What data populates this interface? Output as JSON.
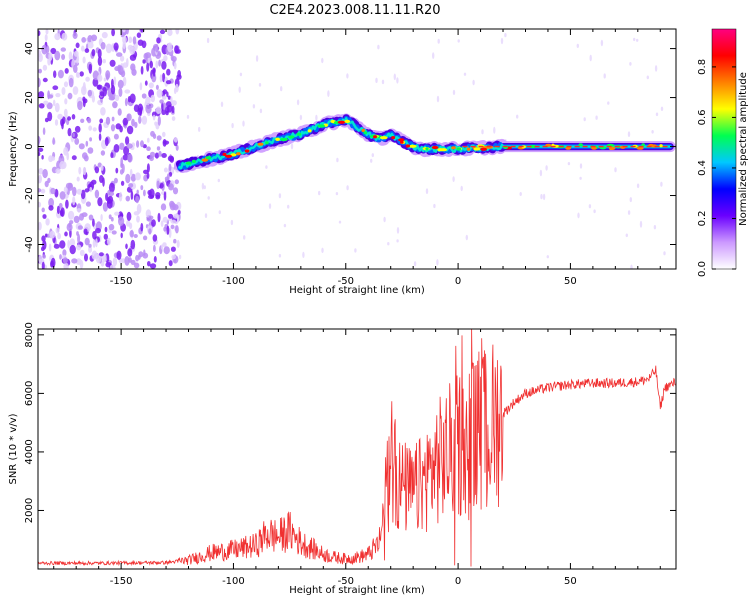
{
  "title": "C2E4.2023.008.11.11.R20",
  "chart_data": [
    {
      "type": "heatmap",
      "xlabel": "Height of straight line (km)",
      "ylabel": "Frequency (Hz)",
      "xlim": [
        -187,
        97
      ],
      "ylim": [
        -50,
        48
      ],
      "xticks": [
        -150,
        -100,
        -50,
        0,
        50
      ],
      "xtick_labels": [
        "-150",
        "-100",
        "-50",
        "0",
        "50"
      ],
      "yticks": [
        -40,
        -20,
        0,
        20,
        40
      ],
      "ytick_labels": [
        "-40",
        "-20",
        "0",
        "20",
        "40"
      ],
      "colorbar": {
        "label": "Normalized spectral amplitude",
        "range": [
          0,
          0.95
        ],
        "ticks": [
          0,
          0.2,
          0.4,
          0.6,
          0.8
        ],
        "tick_labels": [
          "0.0",
          "0.2",
          "0.4",
          "0.6",
          "0.8"
        ],
        "colormap": [
          "#ffffff",
          "#cc99ff",
          "#6a00ff",
          "#0000ff",
          "#00c8ff",
          "#00ff50",
          "#ffff00",
          "#ff8000",
          "#ff0000",
          "#ff0080"
        ]
      },
      "ridge": {
        "x": [
          -124,
          -115,
          -100,
          -90,
          -80,
          -70,
          -60,
          -55,
          -50,
          -45,
          -40,
          -35,
          -30,
          -25,
          -20,
          -15,
          0,
          20,
          50,
          95
        ],
        "freq_hz": [
          -8,
          -6,
          -3,
          0,
          3,
          5,
          9,
          10,
          11,
          8,
          5,
          3,
          5,
          2,
          0,
          -1,
          -1,
          0,
          0,
          0
        ]
      },
      "noise_region_x": [
        -187,
        -124
      ]
    },
    {
      "type": "line",
      "xlabel": "Height of straight line (km)",
      "ylabel": "SNR (10 * v/v)",
      "xlim": [
        -187,
        97
      ],
      "ylim": [
        0,
        8200
      ],
      "xticks": [
        -150,
        -100,
        -50,
        0,
        50
      ],
      "xtick_labels": [
        "-150",
        "-100",
        "-50",
        "0",
        "50"
      ],
      "yticks": [
        2000,
        4000,
        6000,
        8000
      ],
      "ytick_labels": [
        "2000",
        "4000",
        "6000",
        "8000"
      ],
      "color": "#f03030",
      "series": [
        {
          "name": "SNR",
          "x": [
            -187,
            -160,
            -130,
            -120,
            -110,
            -100,
            -90,
            -85,
            -80,
            -75,
            -70,
            -65,
            -60,
            -55,
            -50,
            -45,
            -40,
            -35,
            -32,
            -30,
            -28,
            -25,
            -20,
            -15,
            -10,
            -5,
            0,
            5,
            10,
            15,
            20,
            25,
            30,
            40,
            50,
            60,
            70,
            80,
            85,
            88,
            90,
            92,
            95,
            97
          ],
          "y": [
            200,
            200,
            220,
            300,
            550,
            650,
            800,
            1200,
            1100,
            1300,
            900,
            700,
            500,
            400,
            350,
            400,
            500,
            900,
            2500,
            3500,
            3000,
            2800,
            2600,
            3000,
            3600,
            3900,
            4300,
            4400,
            4700,
            4900,
            5300,
            5700,
            6000,
            6200,
            6300,
            6350,
            6350,
            6400,
            6500,
            6800,
            5500,
            6200,
            6300,
            6400
          ]
        }
      ]
    }
  ]
}
